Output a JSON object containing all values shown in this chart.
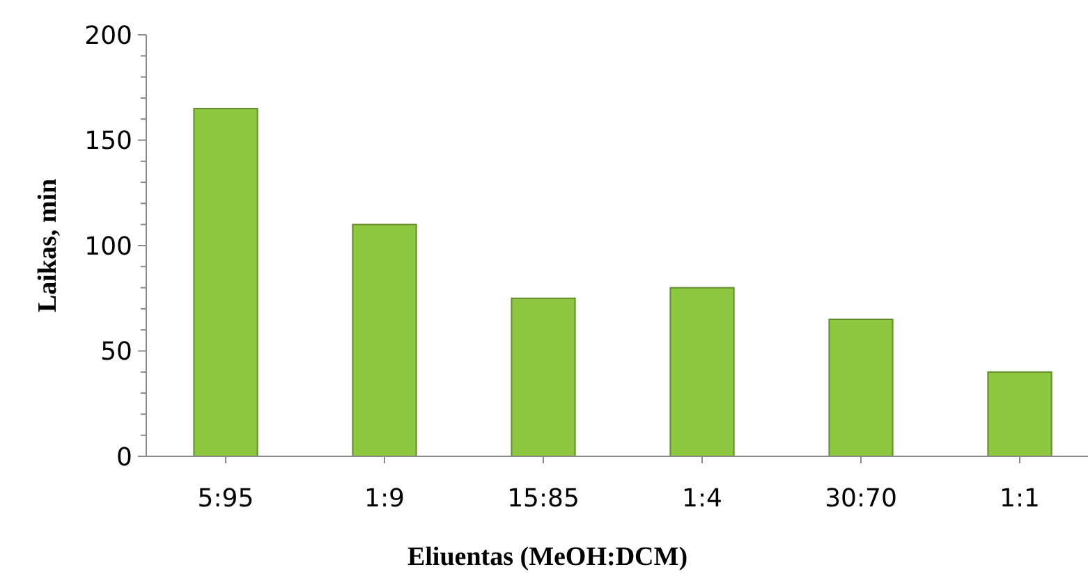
{
  "chart_data": {
    "type": "bar",
    "xlabel": "Eliuentas (MeOH:DCM)",
    "ylabel": "Laikas, min",
    "categories": [
      "5:95",
      "1:9",
      "15:85",
      "1:4",
      "30:70",
      "1:1"
    ],
    "values": [
      165,
      110,
      75,
      80,
      65,
      40
    ],
    "color": "#8dc63f",
    "ylim": [
      0,
      200
    ],
    "yticks": [
      0,
      {
        "value": 10,
        "label": null
      },
      {
        "value": 20,
        "label": null
      },
      {
        "value": 30,
        "label": null
      },
      {
        "value": 40,
        "label": null
      },
      50,
      {
        "value": 60,
        "label": null
      },
      {
        "value": 70,
        "label": null
      },
      {
        "value": 80,
        "label": null
      },
      {
        "value": 90,
        "label": null
      },
      100,
      {
        "value": 110,
        "label": null
      },
      {
        "value": 120,
        "label": null
      },
      {
        "value": 130,
        "label": null
      },
      {
        "value": 140,
        "label": null
      },
      150,
      {
        "value": 160,
        "label": null
      },
      {
        "value": 170,
        "label": null
      },
      {
        "value": 180,
        "label": null
      },
      {
        "value": 190,
        "label": null
      },
      200
    ],
    "grid": false
  }
}
